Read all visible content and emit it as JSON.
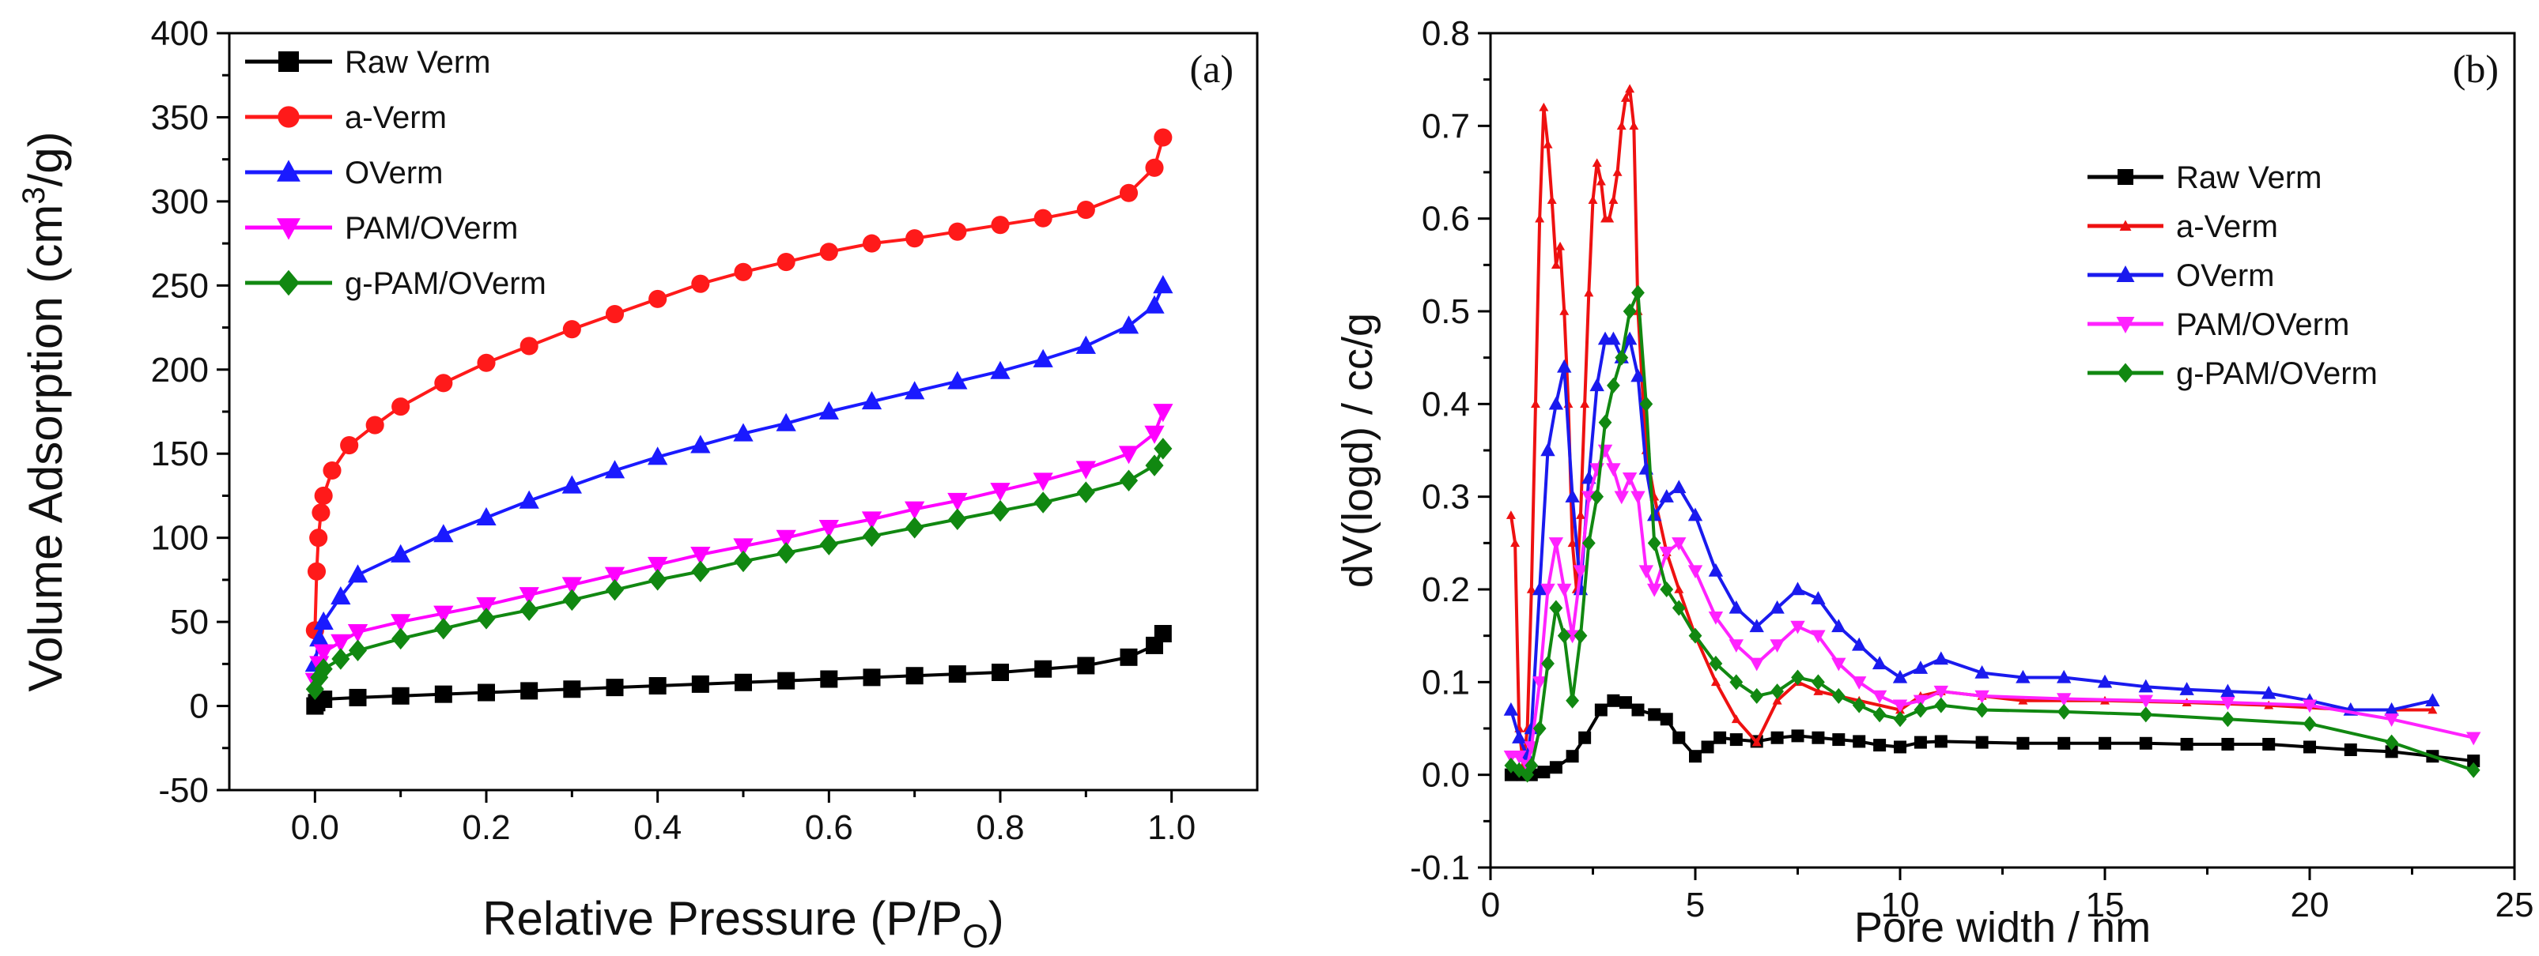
{
  "chart_data": [
    {
      "type": "line",
      "panel_label": "(a)",
      "xlabel": "Relative Pressure (P/P",
      "xlabel_sub": "O",
      "xlabel_end": ")",
      "ylabel": "Volume Adsorption (cm",
      "ylabel_sup": "3",
      "ylabel_end": "/g)",
      "xlim": [
        -0.1,
        1.1
      ],
      "ylim": [
        -50,
        400
      ],
      "xticks": [
        0.0,
        0.2,
        0.4,
        0.6,
        0.8,
        1.0
      ],
      "xtick_labels": [
        "0.0",
        "0.2",
        "0.4",
        "0.6",
        "0.8",
        "1.0"
      ],
      "yticks": [
        -50,
        0,
        50,
        100,
        150,
        200,
        250,
        300,
        350,
        400
      ],
      "ytick_labels": [
        "-50",
        "0",
        "50",
        "100",
        "150",
        "200",
        "250",
        "300",
        "350",
        "400"
      ],
      "legend_position": "top-left",
      "series": [
        {
          "name": "Raw Verm",
          "color": "#000000",
          "marker": "square",
          "x": [
            0.0,
            0.002,
            0.01,
            0.05,
            0.1,
            0.15,
            0.2,
            0.25,
            0.3,
            0.35,
            0.4,
            0.45,
            0.5,
            0.55,
            0.6,
            0.65,
            0.7,
            0.75,
            0.8,
            0.85,
            0.9,
            0.95,
            0.98,
            0.99
          ],
          "y": [
            0,
            2,
            4,
            5,
            6,
            7,
            8,
            9,
            10,
            11,
            12,
            13,
            14,
            15,
            16,
            17,
            18,
            19,
            20,
            22,
            24,
            29,
            36,
            43
          ]
        },
        {
          "name": "a-Verm",
          "color": "#ff1a1a",
          "marker": "circle",
          "x": [
            0.0,
            0.002,
            0.004,
            0.007,
            0.01,
            0.02,
            0.04,
            0.07,
            0.1,
            0.15,
            0.2,
            0.25,
            0.3,
            0.35,
            0.4,
            0.45,
            0.5,
            0.55,
            0.6,
            0.65,
            0.7,
            0.75,
            0.8,
            0.85,
            0.9,
            0.95,
            0.98,
            0.99
          ],
          "y": [
            45,
            80,
            100,
            115,
            125,
            140,
            155,
            167,
            178,
            192,
            204,
            214,
            224,
            233,
            242,
            251,
            258,
            264,
            270,
            275,
            278,
            282,
            286,
            290,
            295,
            305,
            320,
            338
          ]
        },
        {
          "name": "OVerm",
          "color": "#1a1aff",
          "marker": "triangle-up",
          "x": [
            0.0,
            0.005,
            0.01,
            0.03,
            0.05,
            0.1,
            0.15,
            0.2,
            0.25,
            0.3,
            0.35,
            0.4,
            0.45,
            0.5,
            0.55,
            0.6,
            0.65,
            0.7,
            0.75,
            0.8,
            0.85,
            0.9,
            0.95,
            0.98,
            0.99
          ],
          "y": [
            25,
            40,
            50,
            65,
            78,
            90,
            102,
            112,
            122,
            131,
            140,
            148,
            155,
            162,
            168,
            175,
            181,
            187,
            193,
            199,
            206,
            214,
            226,
            238,
            250
          ]
        },
        {
          "name": "PAM/OVerm",
          "color": "#ff00ff",
          "marker": "triangle-down",
          "x": [
            0.0,
            0.005,
            0.01,
            0.03,
            0.05,
            0.1,
            0.15,
            0.2,
            0.25,
            0.3,
            0.35,
            0.4,
            0.45,
            0.5,
            0.55,
            0.6,
            0.65,
            0.7,
            0.75,
            0.8,
            0.85,
            0.9,
            0.95,
            0.98,
            0.99
          ],
          "y": [
            15,
            25,
            32,
            38,
            44,
            50,
            55,
            60,
            66,
            72,
            78,
            84,
            90,
            95,
            100,
            106,
            111,
            117,
            122,
            128,
            134,
            141,
            150,
            162,
            175
          ]
        },
        {
          "name": "g-PAM/OVerm",
          "color": "#118811",
          "marker": "diamond",
          "x": [
            0.0,
            0.005,
            0.01,
            0.03,
            0.05,
            0.1,
            0.15,
            0.2,
            0.25,
            0.3,
            0.35,
            0.4,
            0.45,
            0.5,
            0.55,
            0.6,
            0.65,
            0.7,
            0.75,
            0.8,
            0.85,
            0.9,
            0.95,
            0.98,
            0.99
          ],
          "y": [
            10,
            17,
            22,
            28,
            33,
            40,
            46,
            52,
            57,
            63,
            69,
            75,
            80,
            86,
            91,
            96,
            101,
            106,
            111,
            116,
            121,
            127,
            134,
            143,
            153
          ]
        }
      ]
    },
    {
      "type": "line",
      "panel_label": "(b)",
      "xlabel": "Pore width / nm",
      "ylabel": "dV(logd) / cc/g",
      "xlim": [
        0,
        25
      ],
      "ylim": [
        -0.1,
        0.8
      ],
      "xticks": [
        0,
        5,
        10,
        15,
        20,
        25
      ],
      "xtick_labels": [
        "0",
        "5",
        "10",
        "15",
        "20",
        "25"
      ],
      "yticks": [
        -0.1,
        0.0,
        0.1,
        0.2,
        0.3,
        0.4,
        0.5,
        0.6,
        0.7,
        0.8
      ],
      "ytick_labels": [
        "-0.1",
        "0.0",
        "0.1",
        "0.2",
        "0.3",
        "0.4",
        "0.5",
        "0.6",
        "0.7",
        "0.8"
      ],
      "legend_position": "right",
      "series": [
        {
          "name": "Raw Verm",
          "color": "#000000",
          "marker": "square",
          "x": [
            0.5,
            0.8,
            1.0,
            1.3,
            1.6,
            2.0,
            2.3,
            2.7,
            3.0,
            3.3,
            3.6,
            4.0,
            4.3,
            4.6,
            5.0,
            5.3,
            5.6,
            6.0,
            6.5,
            7.0,
            7.5,
            8.0,
            8.5,
            9.0,
            9.5,
            10.0,
            10.5,
            11.0,
            12.0,
            13.0,
            14.0,
            15.0,
            16.0,
            17.0,
            18.0,
            19.0,
            20.0,
            21.0,
            22.0,
            23.0,
            24.0
          ],
          "y": [
            0.0,
            0.0,
            0.0,
            0.003,
            0.008,
            0.02,
            0.04,
            0.07,
            0.08,
            0.078,
            0.07,
            0.065,
            0.06,
            0.04,
            0.02,
            0.03,
            0.04,
            0.038,
            0.036,
            0.04,
            0.042,
            0.04,
            0.038,
            0.036,
            0.032,
            0.03,
            0.035,
            0.036,
            0.035,
            0.034,
            0.034,
            0.034,
            0.034,
            0.033,
            0.033,
            0.033,
            0.03,
            0.027,
            0.025,
            0.02,
            0.015
          ]
        },
        {
          "name": "a-Verm",
          "color": "#ee1111",
          "marker": "tri-small",
          "x": [
            0.5,
            0.6,
            0.7,
            0.8,
            0.9,
            1.0,
            1.1,
            1.2,
            1.3,
            1.4,
            1.5,
            1.6,
            1.7,
            1.8,
            1.9,
            2.0,
            2.1,
            2.2,
            2.3,
            2.4,
            2.5,
            2.6,
            2.7,
            2.8,
            2.9,
            3.0,
            3.1,
            3.2,
            3.3,
            3.4,
            3.5,
            3.6,
            3.8,
            4.0,
            4.3,
            4.6,
            5.0,
            5.5,
            6.0,
            6.5,
            7.0,
            7.5,
            8.0,
            9.0,
            10.0,
            10.5,
            11.0,
            12.0,
            13.0,
            15.0,
            17.0,
            19.0,
            21.0,
            23.0
          ],
          "y": [
            0.28,
            0.25,
            0.05,
            0.01,
            0.05,
            0.2,
            0.4,
            0.6,
            0.72,
            0.68,
            0.62,
            0.55,
            0.57,
            0.5,
            0.4,
            0.25,
            0.2,
            0.28,
            0.4,
            0.52,
            0.62,
            0.66,
            0.64,
            0.6,
            0.6,
            0.62,
            0.65,
            0.7,
            0.73,
            0.74,
            0.7,
            0.5,
            0.35,
            0.3,
            0.24,
            0.2,
            0.15,
            0.1,
            0.06,
            0.035,
            0.08,
            0.1,
            0.09,
            0.08,
            0.07,
            0.085,
            0.09,
            0.085,
            0.08,
            0.08,
            0.078,
            0.075,
            0.07,
            0.07
          ]
        },
        {
          "name": "OVerm",
          "color": "#1a1aee",
          "marker": "triangle-up",
          "x": [
            0.5,
            0.7,
            0.9,
            1.0,
            1.2,
            1.4,
            1.6,
            1.8,
            2.0,
            2.2,
            2.4,
            2.6,
            2.8,
            3.0,
            3.2,
            3.4,
            3.6,
            3.8,
            4.0,
            4.3,
            4.6,
            5.0,
            5.5,
            6.0,
            6.5,
            7.0,
            7.5,
            8.0,
            8.5,
            9.0,
            9.5,
            10.0,
            10.5,
            11.0,
            12.0,
            13.0,
            14.0,
            15.0,
            16.0,
            17.0,
            18.0,
            19.0,
            20.0,
            21.0,
            22.0,
            23.0
          ],
          "y": [
            0.07,
            0.04,
            0.02,
            0.05,
            0.2,
            0.35,
            0.4,
            0.44,
            0.3,
            0.2,
            0.32,
            0.42,
            0.47,
            0.47,
            0.45,
            0.47,
            0.43,
            0.33,
            0.28,
            0.3,
            0.31,
            0.28,
            0.22,
            0.18,
            0.16,
            0.18,
            0.2,
            0.19,
            0.16,
            0.14,
            0.12,
            0.105,
            0.115,
            0.125,
            0.11,
            0.105,
            0.105,
            0.1,
            0.095,
            0.092,
            0.09,
            0.088,
            0.08,
            0.07,
            0.07,
            0.08
          ]
        },
        {
          "name": "PAM/OVerm",
          "color": "#ff22ff",
          "marker": "triangle-down",
          "x": [
            0.5,
            0.7,
            0.9,
            1.0,
            1.2,
            1.4,
            1.6,
            1.8,
            2.0,
            2.2,
            2.4,
            2.6,
            2.8,
            3.0,
            3.2,
            3.4,
            3.6,
            3.8,
            4.0,
            4.3,
            4.6,
            5.0,
            5.5,
            6.0,
            6.5,
            7.0,
            7.5,
            8.0,
            8.5,
            9.0,
            9.5,
            10.0,
            10.5,
            11.0,
            12.0,
            14.0,
            16.0,
            18.0,
            20.0,
            22.0,
            24.0
          ],
          "y": [
            0.02,
            0.02,
            0.01,
            0.03,
            0.1,
            0.2,
            0.25,
            0.2,
            0.15,
            0.22,
            0.3,
            0.33,
            0.35,
            0.33,
            0.3,
            0.32,
            0.3,
            0.22,
            0.2,
            0.24,
            0.25,
            0.22,
            0.17,
            0.14,
            0.12,
            0.14,
            0.16,
            0.15,
            0.12,
            0.1,
            0.085,
            0.075,
            0.08,
            0.09,
            0.085,
            0.082,
            0.08,
            0.078,
            0.075,
            0.06,
            0.04
          ]
        },
        {
          "name": "g-PAM/OVerm",
          "color": "#118811",
          "marker": "diamond",
          "x": [
            0.5,
            0.7,
            0.9,
            1.0,
            1.2,
            1.4,
            1.6,
            1.8,
            2.0,
            2.2,
            2.4,
            2.6,
            2.8,
            3.0,
            3.2,
            3.4,
            3.6,
            3.8,
            4.0,
            4.3,
            4.6,
            5.0,
            5.5,
            6.0,
            6.5,
            7.0,
            7.5,
            8.0,
            8.5,
            9.0,
            9.5,
            10.0,
            10.5,
            11.0,
            12.0,
            14.0,
            16.0,
            18.0,
            20.0,
            22.0,
            24.0
          ],
          "y": [
            0.01,
            0.005,
            0.0,
            0.01,
            0.05,
            0.12,
            0.18,
            0.15,
            0.08,
            0.15,
            0.25,
            0.3,
            0.38,
            0.42,
            0.45,
            0.5,
            0.52,
            0.4,
            0.25,
            0.2,
            0.18,
            0.15,
            0.12,
            0.1,
            0.085,
            0.09,
            0.105,
            0.1,
            0.085,
            0.075,
            0.065,
            0.06,
            0.07,
            0.075,
            0.07,
            0.068,
            0.065,
            0.06,
            0.055,
            0.035,
            0.005
          ]
        }
      ]
    }
  ]
}
